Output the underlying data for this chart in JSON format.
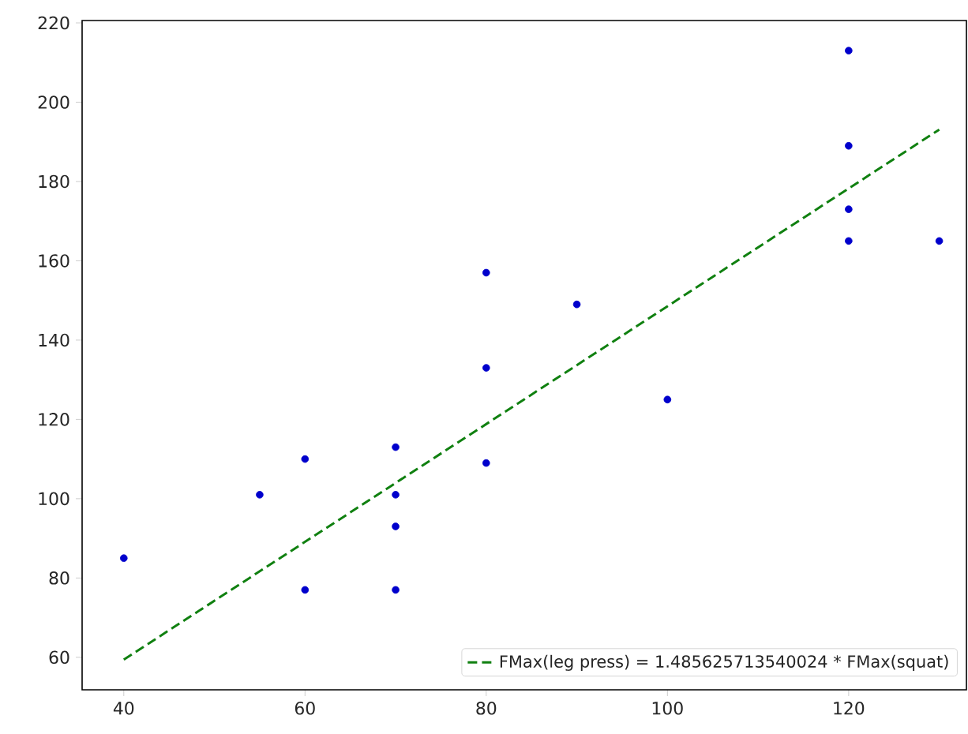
{
  "chart_data": {
    "type": "scatter",
    "x": [
      40,
      55,
      60,
      60,
      70,
      70,
      70,
      70,
      80,
      80,
      80,
      90,
      100,
      120,
      120,
      120,
      120,
      130
    ],
    "series": [
      {
        "color": "#0000cc",
        "marker": "circle",
        "values": [
          85,
          101,
          110,
          77,
          113,
          101,
          93,
          77,
          157,
          133,
          109,
          149,
          125,
          213,
          189,
          173,
          165,
          165
        ]
      },
      {
        "type": "line",
        "name": "FMax(leg press) = 1.485625713540024 * FMax(squat)",
        "color": "#108010",
        "line_style": "dashed",
        "marker": "none",
        "x": [
          40,
          130
        ],
        "values": [
          59.4,
          193.1
        ]
      }
    ],
    "xlim": [
      35.4,
      133
    ],
    "ylim": [
      51.8,
      220.6
    ],
    "xticks": [
      40,
      60,
      80,
      100,
      120
    ],
    "yticks": [
      60,
      80,
      100,
      120,
      140,
      160,
      180,
      200,
      220
    ],
    "legend": "bottom right",
    "grid": false
  }
}
